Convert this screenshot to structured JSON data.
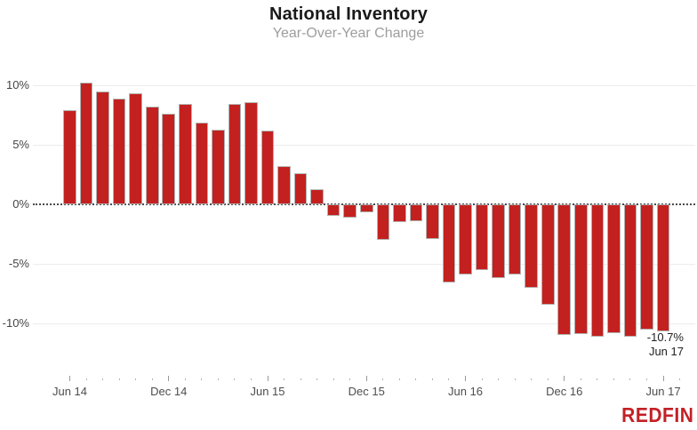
{
  "header": {
    "title": "National Inventory",
    "subtitle": "Year-Over-Year Change"
  },
  "annotation": {
    "value": "-10.7%",
    "date": "Jun 17"
  },
  "branding": {
    "logo_text": "REDFIN",
    "logo_color": "#c22126"
  },
  "colors": {
    "bar_fill": "#c3211f",
    "bar_border": "#b3b3b3",
    "gridline": "#ececec",
    "zero_line": "#4a4a4a",
    "y_axis_label": "#444444",
    "x_axis_label": "#4d4d4d",
    "title": "#1a1a1a",
    "subtitle": "#9e9e9e",
    "annotation_text": "#222222"
  },
  "chart_data": {
    "type": "bar",
    "title": "National Inventory",
    "subtitle": "Year-Over-Year Change",
    "xlabel": "",
    "ylabel": "",
    "unit": "%",
    "grid": "horizontal",
    "legend": null,
    "zero_line_style": "dotted",
    "bar_color": "#c3211f",
    "categories": [
      "Jun 14",
      "Jul 14",
      "Aug 14",
      "Sep 14",
      "Oct 14",
      "Nov 14",
      "Dec 14",
      "Jan 15",
      "Feb 15",
      "Mar 15",
      "Apr 15",
      "May 15",
      "Jun 15",
      "Jul 15",
      "Aug 15",
      "Sep 15",
      "Oct 15",
      "Nov 15",
      "Dec 15",
      "Jan 16",
      "Feb 16",
      "Mar 16",
      "Apr 16",
      "May 16",
      "Jun 16",
      "Jul 16",
      "Aug 16",
      "Sep 16",
      "Oct 16",
      "Nov 16",
      "Dec 16",
      "Jan 17",
      "Feb 17",
      "Mar 17",
      "Apr 17",
      "May 17",
      "Jun 17"
    ],
    "values": [
      7.9,
      10.2,
      9.5,
      8.9,
      9.3,
      8.2,
      7.6,
      8.4,
      6.9,
      6.3,
      8.4,
      8.6,
      6.2,
      3.2,
      2.6,
      1.3,
      -1.0,
      -1.1,
      -0.7,
      -3.0,
      -1.5,
      -1.4,
      -2.9,
      -6.6,
      -5.9,
      -5.5,
      -6.2,
      -5.9,
      -7.0,
      -8.4,
      -11.0,
      -10.9,
      -11.1,
      -10.8,
      -11.1,
      -10.5,
      -10.7
    ],
    "y_axis": {
      "ticks": [
        10,
        5,
        0,
        -5,
        -10
      ],
      "tick_labels": [
        "10%",
        "5%",
        "0%",
        "-5%",
        "-10%"
      ],
      "range_shown": [
        -12,
        11.5
      ]
    },
    "x_axis": {
      "labeled_categories": [
        "Jun 14",
        "Dec 14",
        "Jun 15",
        "Dec 15",
        "Jun 16",
        "Dec 16",
        "Jun 17"
      ],
      "label_every_n_months": 6
    },
    "annotations": [
      {
        "line1": "-10.7%",
        "line2": "Jun 17",
        "target_category": "Jun 17"
      }
    ]
  }
}
